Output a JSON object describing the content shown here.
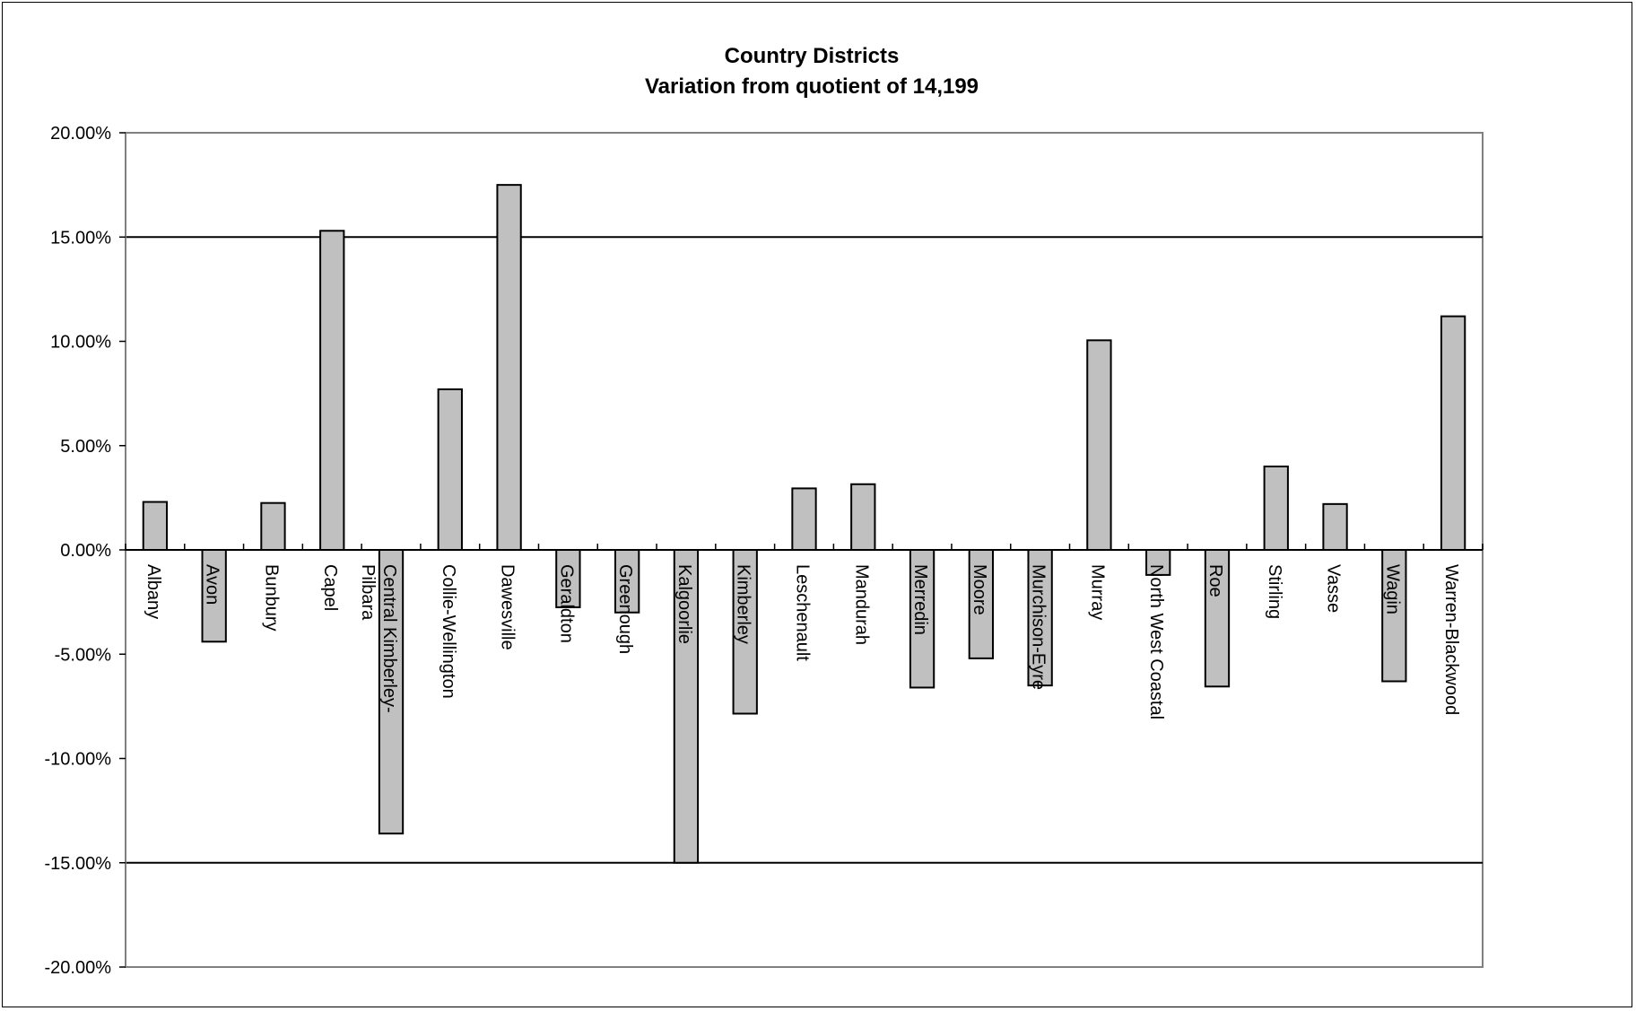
{
  "chart_data": {
    "type": "bar",
    "title": "Country Districts",
    "subtitle": "Variation from quotient of 14,199",
    "xlabel": "",
    "ylabel": "",
    "ylim": [
      -20,
      20
    ],
    "y_ticks": [
      "20.00%",
      "15.00%",
      "10.00%",
      "5.00%",
      "0.00%",
      "-5.00%",
      "-10.00%",
      "-15.00%",
      "-20.00%"
    ],
    "reference_lines": [
      15,
      -15
    ],
    "grid": false,
    "categories": [
      "Albany",
      "Avon",
      "Bunbury",
      "Capel",
      "Central Kimberley-Pilbara",
      "Collie-Wellington",
      "Dawesville",
      "Geraldton",
      "Greenough",
      "Kalgoorlie",
      "Kimberley",
      "Leschenault",
      "Mandurah",
      "Merredin",
      "Moore",
      "Murchison-Eyre",
      "Murray",
      "North West Coastal",
      "Roe",
      "Stirling",
      "Vasse",
      "Wagin",
      "Warren-Blackwood"
    ],
    "category_label_lines": [
      [
        "Albany"
      ],
      [
        "Avon"
      ],
      [
        "Bunbury"
      ],
      [
        "Capel"
      ],
      [
        "Central Kimberley-",
        "Pilbara"
      ],
      [
        "Collie-Wellington"
      ],
      [
        "Dawesville"
      ],
      [
        "Geraldton"
      ],
      [
        "Greenough"
      ],
      [
        "Kalgoorlie"
      ],
      [
        "Kimberley"
      ],
      [
        "Leschenault"
      ],
      [
        "Mandurah"
      ],
      [
        "Merredin"
      ],
      [
        "Moore"
      ],
      [
        "Murchison-Eyre"
      ],
      [
        "Murray"
      ],
      [
        "North West Coastal"
      ],
      [
        "Roe"
      ],
      [
        "Stirling"
      ],
      [
        "Vasse"
      ],
      [
        "Wagin"
      ],
      [
        "Warren-Blackwood"
      ]
    ],
    "series": [
      {
        "values": [
          2.3,
          -4.4,
          2.25,
          15.3,
          -13.6,
          7.7,
          17.5,
          -2.75,
          -3.0,
          -15.0,
          -7.85,
          2.95,
          3.15,
          -6.6,
          -5.2,
          -6.5,
          10.05,
          -1.2,
          -6.55,
          4.0,
          2.2,
          -6.3,
          11.2
        ]
      }
    ],
    "colors": {
      "bar_fill": "#c0c0c0",
      "bar_stroke": "#000000",
      "axis": "#000000",
      "plot_border": "#808080"
    }
  }
}
